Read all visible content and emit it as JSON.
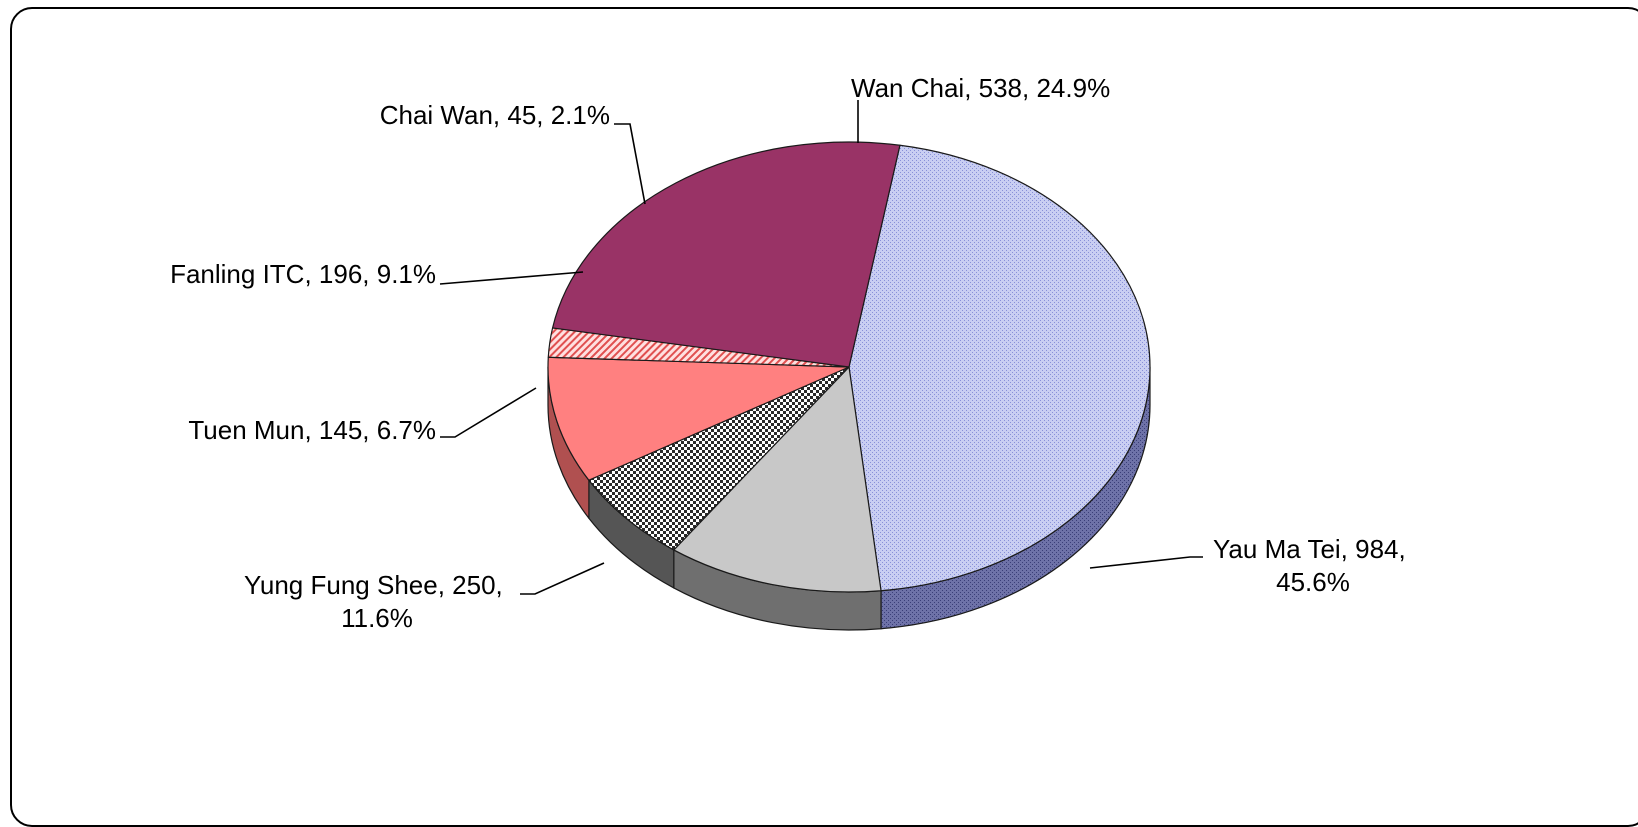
{
  "chart_data": {
    "type": "pie",
    "title": "",
    "three_d": true,
    "start": "top, clockwise",
    "slices": [
      {
        "label": "Yau Ma Tei",
        "value": 984,
        "percent": "45.6%",
        "color": "#c8cdf0",
        "pattern": "dots-blue"
      },
      {
        "label": "Yung Fung Shee",
        "value": 250,
        "percent": "11.6%",
        "color": "#c8c8c8",
        "pattern": "solid-grey"
      },
      {
        "label": "Tuen Mun",
        "value": 145,
        "percent": "6.7%",
        "color": "#bbbbbb",
        "pattern": "checker"
      },
      {
        "label": "Fanling ITC",
        "value": 196,
        "percent": "9.1%",
        "color": "#ff8080",
        "pattern": "solid-salmon"
      },
      {
        "label": "Chai Wan",
        "value": 45,
        "percent": "2.1%",
        "color": "#ff9a9a",
        "pattern": "diagonal-red"
      },
      {
        "label": "Wan Chai",
        "value": 538,
        "percent": "24.9%",
        "color": "#993366",
        "pattern": "solid-plum"
      }
    ],
    "data_labels": [
      {
        "slice": "Wan Chai",
        "lines": [
          "Wan Chai, 538, 24.9%"
        ]
      },
      {
        "slice": "Chai Wan",
        "lines": [
          "Chai Wan, 45, 2.1%"
        ]
      },
      {
        "slice": "Fanling ITC",
        "lines": [
          "Fanling ITC, 196, 9.1%"
        ]
      },
      {
        "slice": "Tuen Mun",
        "lines": [
          "Tuen Mun, 145, 6.7%"
        ]
      },
      {
        "slice": "Yung Fung Shee",
        "lines": [
          "Yung Fung Shee, 250,",
          "11.6%"
        ]
      },
      {
        "slice": "Yau Ma Tei",
        "lines": [
          "Yau Ma Tei, 984,",
          "45.6%"
        ]
      }
    ]
  }
}
